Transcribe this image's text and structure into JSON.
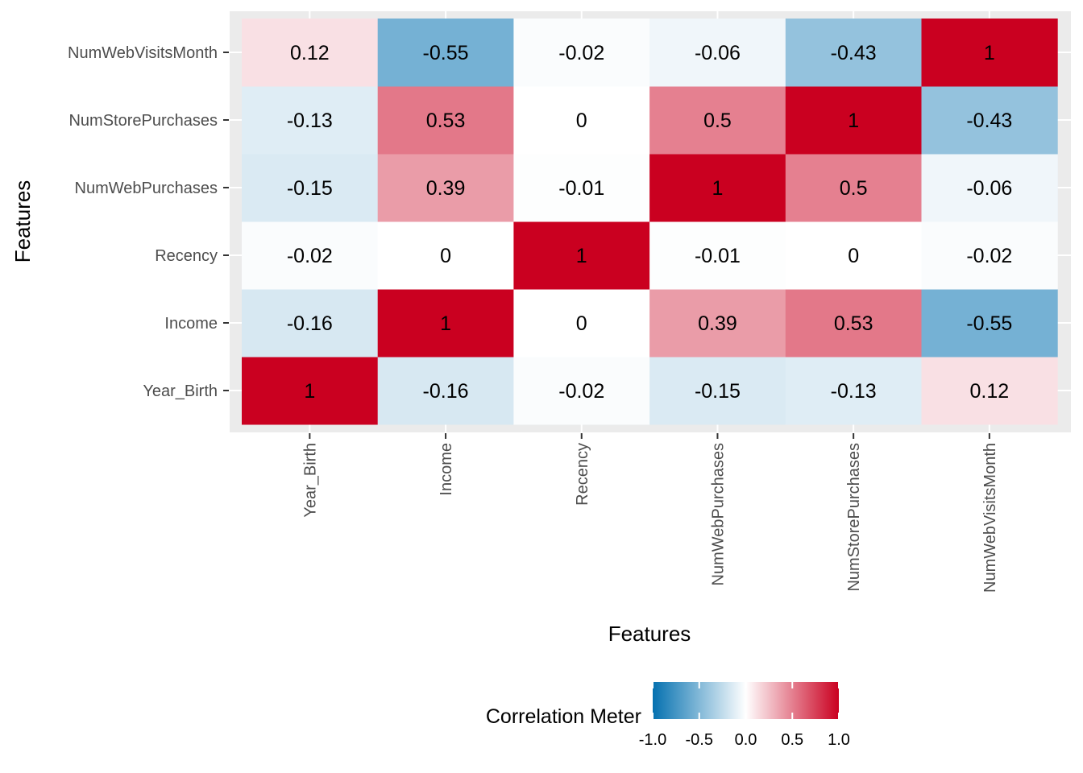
{
  "chart_data": {
    "type": "heatmap",
    "x_categories": [
      "Year_Birth",
      "Income",
      "Recency",
      "NumWebPurchases",
      "NumStorePurchases",
      "NumWebVisitsMonth"
    ],
    "y_categories": [
      "Year_Birth",
      "Income",
      "Recency",
      "NumWebPurchases",
      "NumStorePurchases",
      "NumWebVisitsMonth"
    ],
    "matrix": [
      [
        1,
        -0.16,
        -0.02,
        -0.15,
        -0.13,
        0.12
      ],
      [
        -0.16,
        1,
        0,
        0.39,
        0.53,
        -0.55
      ],
      [
        -0.02,
        0,
        1,
        -0.01,
        0,
        -0.02
      ],
      [
        -0.15,
        0.39,
        -0.01,
        1,
        0.5,
        -0.06
      ],
      [
        -0.13,
        0.53,
        0,
        0.5,
        1,
        -0.43
      ],
      [
        0.12,
        -0.55,
        -0.02,
        -0.06,
        -0.43,
        1
      ]
    ],
    "xlabel": "Features",
    "ylabel": "Features",
    "color_range": [
      -1.0,
      1.0
    ],
    "colors": {
      "low": "#0571b0",
      "mid": "#ffffff",
      "high": "#ca0020",
      "panel_bg": "#ebebeb",
      "grid": "#ffffff"
    },
    "legend": {
      "title": "Correlation Meter",
      "position": "bottom",
      "ticks": [
        -1.0,
        -0.5,
        0.0,
        0.5,
        1.0
      ],
      "tick_labels": [
        "-1.0",
        "-0.5",
        "0.0",
        "0.5",
        "1.0"
      ]
    },
    "grid": true
  }
}
